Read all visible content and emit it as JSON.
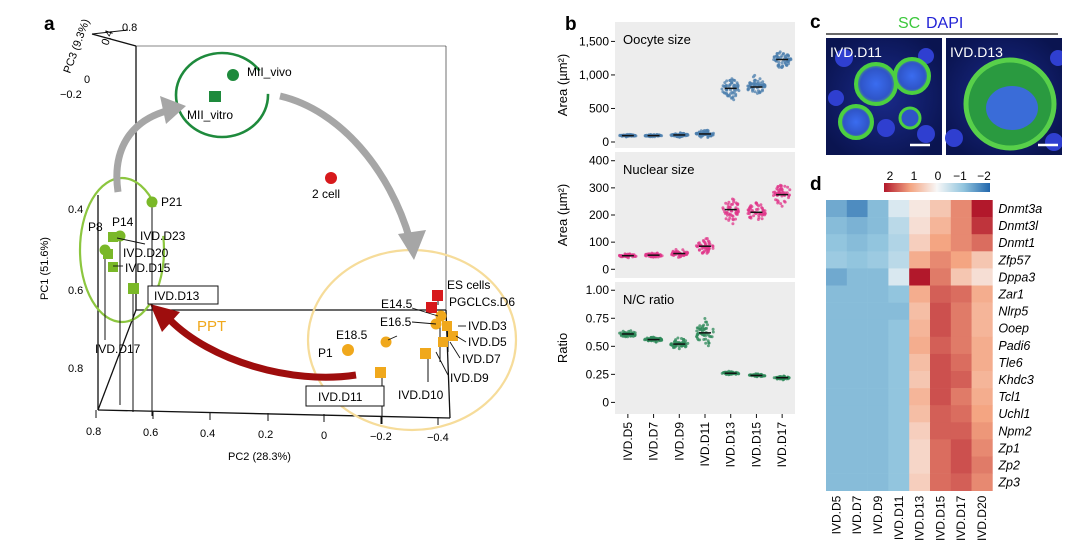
{
  "panel_labels": {
    "a": "a",
    "b": "b",
    "c": "c",
    "d": "d"
  },
  "colors": {
    "green_dark": "#1e8a3c",
    "green_light": "#7ab828",
    "red_cell": "#d7191c",
    "orange": "#f0a81c",
    "arrow_grey": "#a6a6a6",
    "arrow_red": "#9e0d0d",
    "oocyte_blue": "#4c7fae",
    "nuclear_pink": "#e0368a",
    "ratio_green": "#2e8a5a",
    "sc_green": "#3cc83c",
    "dapi_blue": "#2323d6"
  },
  "panel_a": {
    "axes": {
      "pc1_label": "PC1 (51.6%)",
      "pc2_label": "PC2 (28.3%)",
      "pc3_label": "PC3 (9.3%)",
      "pc1_ticks": [
        "0.4",
        "0.6",
        "0.8"
      ],
      "pc2_ticks": [
        "0.8",
        "0.6",
        "0.4",
        "0.2",
        "0",
        "−0.2",
        "−0.4"
      ],
      "pc3_ticks": [
        "0.8",
        "0.4",
        "0",
        "−0.2"
      ]
    },
    "points": [
      {
        "label": "MII_vivo",
        "group": "green_dark",
        "shape": "circle"
      },
      {
        "label": "MII_vitro",
        "group": "green_dark",
        "shape": "square"
      },
      {
        "label": "2 cell",
        "group": "red",
        "shape": "circle"
      },
      {
        "label": "P21",
        "group": "green_light",
        "shape": "circle"
      },
      {
        "label": "P14",
        "group": "green_light",
        "shape": "circle"
      },
      {
        "label": "P8",
        "group": "green_light",
        "shape": "circle"
      },
      {
        "label": "IVD.D23",
        "group": "green_light",
        "shape": "square"
      },
      {
        "label": "IVD.D20",
        "group": "green_light",
        "shape": "square"
      },
      {
        "label": "IVD.D15",
        "group": "green_light",
        "shape": "square"
      },
      {
        "label": "IVD.D13",
        "group": "green_light",
        "shape": "square"
      },
      {
        "label": "IVD.D17",
        "group": "green_light",
        "shape": "square"
      },
      {
        "label": "ES cells",
        "group": "red",
        "shape": "square"
      },
      {
        "label": "PGCLCs.D6",
        "group": "red",
        "shape": "square"
      },
      {
        "label": "E14.5",
        "group": "orange",
        "shape": "circle"
      },
      {
        "label": "E16.5",
        "group": "orange",
        "shape": "circle"
      },
      {
        "label": "E18.5",
        "group": "orange",
        "shape": "circle"
      },
      {
        "label": "P1",
        "group": "orange",
        "shape": "circle"
      },
      {
        "label": "IVD.D3",
        "group": "orange",
        "shape": "square"
      },
      {
        "label": "IVD.D5",
        "group": "orange",
        "shape": "square"
      },
      {
        "label": "IVD.D7",
        "group": "orange",
        "shape": "square"
      },
      {
        "label": "IVD.D9",
        "group": "orange",
        "shape": "square"
      },
      {
        "label": "IVD.D10",
        "group": "orange",
        "shape": "square"
      },
      {
        "label": "IVD.D11",
        "group": "orange",
        "shape": "square"
      }
    ],
    "ppt_label": "PPT"
  },
  "chart_data": [
    {
      "type": "scatter",
      "title": "Oocyte size",
      "ylabel": "Area (µm²)",
      "ylim": [
        0,
        1700
      ],
      "yticks": [
        "0",
        "500",
        "1,000",
        "1,500"
      ],
      "categories": [
        "IVD.D5",
        "IVD.D7",
        "IVD.D9",
        "IVD.D11",
        "IVD.D13",
        "IVD.D15",
        "IVD.D17"
      ],
      "medians": [
        95,
        95,
        105,
        120,
        800,
        820,
        1230
      ],
      "spread": [
        30,
        35,
        55,
        110,
        330,
        300,
        280
      ]
    },
    {
      "type": "scatter",
      "title": "Nuclear size",
      "ylabel": "Area (µm²)",
      "ylim": [
        -10,
        410
      ],
      "yticks": [
        "0",
        "100",
        "200",
        "300",
        "400"
      ],
      "categories": [
        "IVD.D5",
        "IVD.D7",
        "IVD.D9",
        "IVD.D11",
        "IVD.D13",
        "IVD.D15",
        "IVD.D17"
      ],
      "medians": [
        50,
        52,
        58,
        85,
        220,
        210,
        275
      ],
      "spread": [
        15,
        18,
        30,
        50,
        95,
        80,
        90
      ]
    },
    {
      "type": "scatter",
      "title": "N/C ratio",
      "ylabel": "Ratio",
      "ylim": [
        -0.05,
        1.02
      ],
      "yticks": [
        "0",
        "0.25",
        "0.50",
        "0.75",
        "1.00"
      ],
      "categories": [
        "IVD.D5",
        "IVD.D7",
        "IVD.D9",
        "IVD.D11",
        "IVD.D13",
        "IVD.D15",
        "IVD.D17"
      ],
      "medians": [
        0.61,
        0.56,
        0.52,
        0.62,
        0.26,
        0.24,
        0.22
      ],
      "spread": [
        0.06,
        0.05,
        0.1,
        0.25,
        0.03,
        0.03,
        0.03
      ]
    },
    {
      "type": "heatmap",
      "legend_ticks": [
        "2",
        "1",
        "0",
        "−1",
        "−2"
      ],
      "columns": [
        "IVD.D5",
        "IVD.D7",
        "IVD.D9",
        "IVD.D11",
        "IVD.D13",
        "IVD.D15",
        "IVD.D17",
        "IVD.D20"
      ],
      "rows": [
        "Dnmt3a",
        "Dnmt3l",
        "Dnmt1",
        "Zfp57",
        "Dppa3",
        "Zar1",
        "Nlrp5",
        "Ooep",
        "Padi6",
        "Tle6",
        "Khdc3",
        "Tcl1",
        "Uchl1",
        "Npm2",
        "Zp1",
        "Zp2",
        "Zp3"
      ],
      "values": [
        [
          -1.3,
          -1.6,
          -1.1,
          -0.3,
          0.2,
          0.6,
          1.2,
          2.3
        ],
        [
          -1.1,
          -1.2,
          -1.1,
          -0.6,
          0.3,
          0.8,
          1.2,
          1.8
        ],
        [
          -1.0,
          -1.1,
          -1.0,
          -0.7,
          0.5,
          1.0,
          1.2,
          1.4
        ],
        [
          -0.9,
          -1.0,
          -0.9,
          -0.6,
          0.9,
          1.2,
          1.0,
          0.6
        ],
        [
          -1.3,
          -1.1,
          -1.1,
          -0.3,
          2.0,
          1.3,
          0.6,
          0.3
        ],
        [
          -1.1,
          -1.1,
          -1.1,
          -1.0,
          0.9,
          1.5,
          1.4,
          0.9
        ],
        [
          -1.1,
          -1.1,
          -1.1,
          -1.1,
          0.7,
          1.6,
          1.3,
          0.8
        ],
        [
          -1.1,
          -1.1,
          -1.1,
          -1.0,
          0.8,
          1.6,
          1.3,
          0.8
        ],
        [
          -1.1,
          -1.1,
          -1.1,
          -1.0,
          0.9,
          1.5,
          1.3,
          0.9
        ],
        [
          -1.1,
          -1.1,
          -1.1,
          -1.0,
          0.7,
          1.6,
          1.4,
          0.9
        ],
        [
          -1.1,
          -1.1,
          -1.1,
          -1.0,
          0.6,
          1.6,
          1.5,
          0.8
        ],
        [
          -1.1,
          -1.1,
          -1.1,
          -1.0,
          0.8,
          1.6,
          1.3,
          0.9
        ],
        [
          -1.1,
          -1.1,
          -1.1,
          -1.0,
          0.7,
          1.5,
          1.4,
          1.0
        ],
        [
          -1.1,
          -1.1,
          -1.1,
          -1.0,
          0.5,
          1.5,
          1.5,
          1.1
        ],
        [
          -1.1,
          -1.1,
          -1.1,
          -1.0,
          0.4,
          1.4,
          1.6,
          1.2
        ],
        [
          -1.1,
          -1.1,
          -1.1,
          -1.0,
          0.4,
          1.4,
          1.6,
          1.3
        ],
        [
          -1.1,
          -1.1,
          -1.1,
          -1.0,
          0.5,
          1.4,
          1.5,
          1.2
        ]
      ]
    }
  ],
  "panel_c": {
    "legend_sc": "SC",
    "legend_dapi": "DAPI",
    "left_label": "IVD.D11",
    "right_label": "IVD.D13"
  }
}
